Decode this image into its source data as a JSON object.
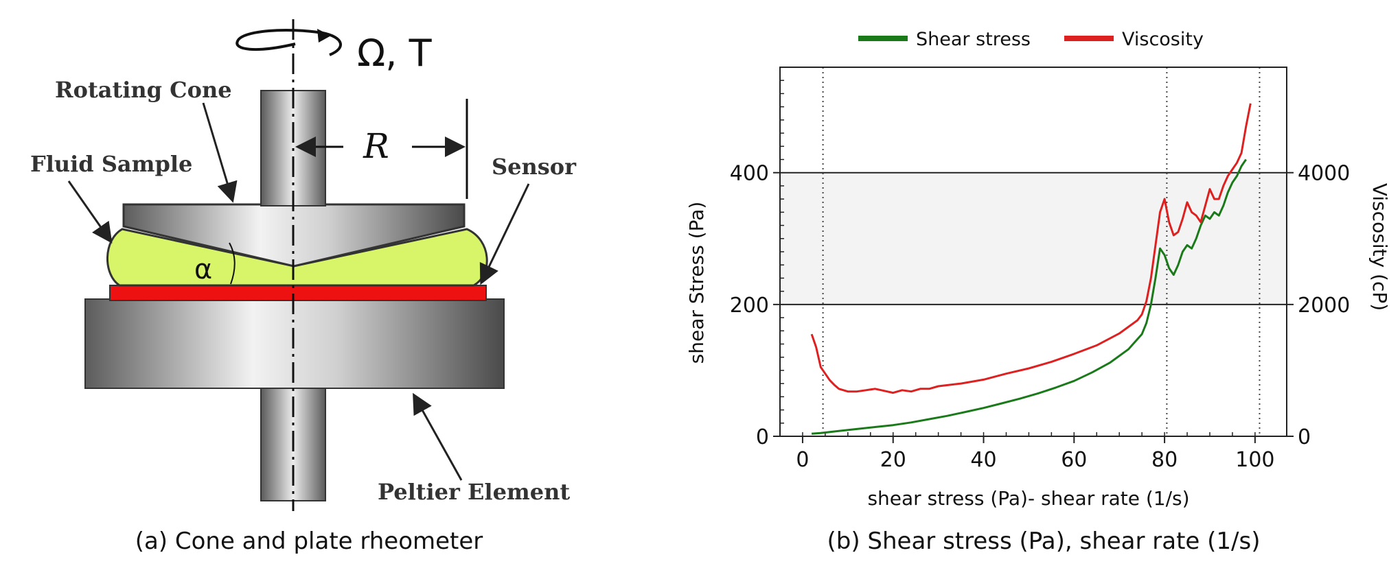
{
  "diagram": {
    "rotation_label": "Ω, T",
    "rotating_cone_label": "Rotating Cone",
    "fluid_sample_label": "Fluid Sample",
    "sensor_label": "Sensor",
    "radius_label": "R",
    "angle_label": "α",
    "peltier_label": "Peltier Element",
    "caption": "(a) Cone and plate rheometer",
    "colors": {
      "fluid": "#d8f56a",
      "sensor": "#ee1111"
    }
  },
  "chart_caption": "(b) Shear stress (Pa), shear rate (1/s)",
  "chart_data": {
    "type": "line",
    "title": "",
    "xlabel": "shear stress (Pa)- shear rate (1/s)",
    "ylabel": "shear Stress (Pa)",
    "y2label": "Viscosity (cP)",
    "xlim": [
      -5,
      107
    ],
    "ylim": [
      0,
      560
    ],
    "y2lim": [
      0,
      5600
    ],
    "xticks": [
      0,
      20,
      40,
      60,
      80,
      100
    ],
    "yticks": [
      0,
      200,
      400
    ],
    "y2ticks": [
      0,
      2000,
      4000
    ],
    "reference_lines_x": [
      4.5,
      80.5,
      101
    ],
    "shaded_band_y": [
      200,
      400
    ],
    "legend_position": "top",
    "grid": false,
    "series": [
      {
        "name": "Shear stress",
        "color": "#1a7a1a",
        "axis": "left",
        "x": [
          2,
          4,
          8,
          12,
          16,
          20,
          24,
          28,
          32,
          36,
          40,
          44,
          48,
          52,
          56,
          60,
          64,
          68,
          72,
          75,
          76,
          77,
          78,
          79,
          80,
          81,
          82,
          83,
          84,
          85,
          86,
          87,
          88,
          89,
          90,
          91,
          92,
          93,
          94,
          95,
          96,
          97,
          98
        ],
        "values": [
          4,
          5,
          8,
          11,
          14,
          17,
          21,
          26,
          31,
          37,
          43,
          50,
          57,
          65,
          74,
          84,
          97,
          112,
          132,
          155,
          172,
          200,
          240,
          285,
          275,
          255,
          245,
          260,
          280,
          290,
          285,
          300,
          320,
          335,
          330,
          340,
          335,
          350,
          370,
          385,
          395,
          410,
          420
        ]
      },
      {
        "name": "Viscosity",
        "color": "#dd2020",
        "axis": "right",
        "x": [
          2,
          3,
          4,
          5,
          6,
          7,
          8,
          10,
          12,
          14,
          16,
          18,
          20,
          22,
          24,
          26,
          28,
          30,
          35,
          40,
          45,
          50,
          55,
          60,
          65,
          70,
          72,
          74,
          75,
          76,
          77,
          78,
          79,
          80,
          81,
          82,
          83,
          84,
          85,
          86,
          87,
          88,
          89,
          90,
          91,
          92,
          93,
          94,
          95,
          96,
          97,
          98,
          99
        ],
        "values": [
          1550,
          1350,
          1050,
          950,
          850,
          780,
          720,
          680,
          680,
          700,
          720,
          690,
          660,
          700,
          680,
          720,
          720,
          760,
          800,
          860,
          950,
          1030,
          1130,
          1250,
          1380,
          1560,
          1660,
          1760,
          1850,
          2050,
          2400,
          2900,
          3400,
          3600,
          3250,
          3050,
          3100,
          3300,
          3550,
          3400,
          3350,
          3250,
          3500,
          3750,
          3600,
          3600,
          3800,
          3950,
          4050,
          4150,
          4300,
          4700,
          5050
        ]
      }
    ]
  }
}
